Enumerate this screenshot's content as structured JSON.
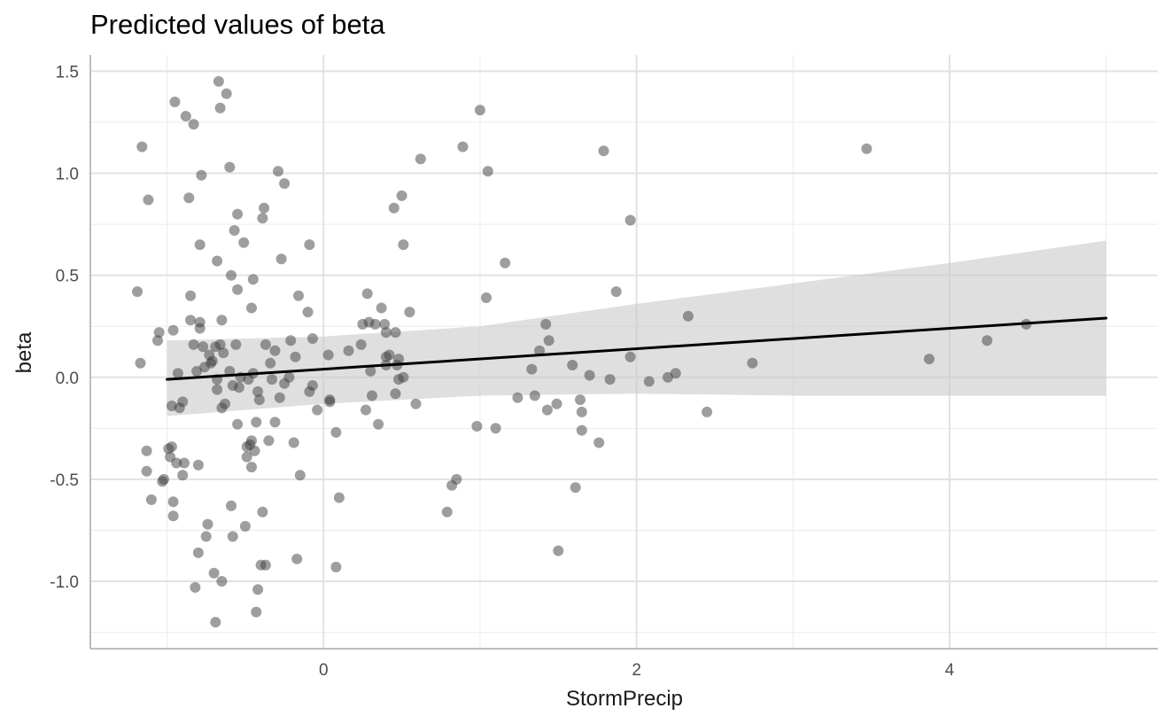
{
  "chart_data": {
    "type": "scatter",
    "title": "Predicted values of beta",
    "xlabel": "StormPrecip",
    "ylabel": "beta",
    "xlim": [
      -1.49,
      5.33
    ],
    "ylim": [
      -1.33,
      1.58
    ],
    "x_ticks": [
      0,
      2,
      4
    ],
    "x_tick_labels": [
      "0",
      "2",
      "4"
    ],
    "x_minor_ticks": [
      -1,
      1,
      3,
      5
    ],
    "y_ticks": [
      -1.0,
      -0.5,
      0.0,
      0.5,
      1.0,
      1.5
    ],
    "y_tick_labels": [
      "-1.0",
      "-0.5",
      "0.0",
      "0.5",
      "1.0",
      "1.5"
    ],
    "y_minor_ticks": [
      -1.25,
      -0.75,
      -0.25,
      0.25,
      0.75,
      1.25
    ],
    "grid": true,
    "colors": {
      "points": "#3d3d3d",
      "line": "#000000",
      "ribbon": "#c9c9c9",
      "grid": "#ebebeb",
      "axis": "#bdbdbd"
    },
    "fit_line": {
      "x": [
        -1.0,
        5.0
      ],
      "y": [
        -0.01,
        0.29
      ]
    },
    "ci_band": {
      "x": [
        -1.0,
        0.0,
        1.0,
        2.0,
        3.0,
        4.0,
        5.0
      ],
      "upper": [
        0.18,
        0.2,
        0.25,
        0.36,
        0.46,
        0.56,
        0.67
      ],
      "lower": [
        -0.19,
        -0.13,
        -0.09,
        -0.08,
        -0.09,
        -0.09,
        -0.09
      ]
    },
    "points": [
      {
        "x": -1.19,
        "y": 0.42
      },
      {
        "x": -1.16,
        "y": 1.13
      },
      {
        "x": -1.17,
        "y": 0.07
      },
      {
        "x": -1.12,
        "y": 0.87
      },
      {
        "x": -1.13,
        "y": -0.36
      },
      {
        "x": -1.13,
        "y": -0.46
      },
      {
        "x": -1.1,
        "y": -0.6
      },
      {
        "x": -1.06,
        "y": 0.18
      },
      {
        "x": -1.05,
        "y": 0.22
      },
      {
        "x": -1.03,
        "y": -0.51
      },
      {
        "x": -1.02,
        "y": -0.5
      },
      {
        "x": -0.99,
        "y": -0.35
      },
      {
        "x": -0.98,
        "y": -0.39
      },
      {
        "x": -0.97,
        "y": -0.14
      },
      {
        "x": -0.97,
        "y": -0.34
      },
      {
        "x": -0.96,
        "y": -0.61
      },
      {
        "x": -0.96,
        "y": -0.68
      },
      {
        "x": -0.96,
        "y": 0.23
      },
      {
        "x": -0.95,
        "y": 1.35
      },
      {
        "x": -0.94,
        "y": -0.42
      },
      {
        "x": -0.93,
        "y": 0.02
      },
      {
        "x": -0.92,
        "y": -0.15
      },
      {
        "x": -0.9,
        "y": -0.12
      },
      {
        "x": -0.9,
        "y": -0.48
      },
      {
        "x": -0.89,
        "y": -0.42
      },
      {
        "x": -0.88,
        "y": 1.28
      },
      {
        "x": -0.86,
        "y": 0.88
      },
      {
        "x": -0.85,
        "y": 0.4
      },
      {
        "x": -0.85,
        "y": 0.28
      },
      {
        "x": -0.83,
        "y": 1.24
      },
      {
        "x": -0.83,
        "y": 0.16
      },
      {
        "x": -0.82,
        "y": -1.03
      },
      {
        "x": -0.81,
        "y": 0.03
      },
      {
        "x": -0.8,
        "y": -0.43
      },
      {
        "x": -0.8,
        "y": -0.86
      },
      {
        "x": -0.79,
        "y": 0.27
      },
      {
        "x": -0.79,
        "y": 0.65
      },
      {
        "x": -0.79,
        "y": 0.24
      },
      {
        "x": -0.78,
        "y": 0.99
      },
      {
        "x": -0.77,
        "y": 0.15
      },
      {
        "x": -0.76,
        "y": 0.05
      },
      {
        "x": -0.75,
        "y": -0.78
      },
      {
        "x": -0.74,
        "y": -0.72
      },
      {
        "x": -0.73,
        "y": 0.11
      },
      {
        "x": -0.72,
        "y": 0.07
      },
      {
        "x": -0.71,
        "y": 0.08
      },
      {
        "x": -0.7,
        "y": -0.96
      },
      {
        "x": -0.69,
        "y": -1.2
      },
      {
        "x": -0.69,
        "y": 0.15
      },
      {
        "x": -0.68,
        "y": 0.57
      },
      {
        "x": -0.68,
        "y": -0.01
      },
      {
        "x": -0.68,
        "y": -0.06
      },
      {
        "x": -0.67,
        "y": 1.45
      },
      {
        "x": -0.66,
        "y": 0.16
      },
      {
        "x": -0.66,
        "y": 1.32
      },
      {
        "x": -0.65,
        "y": -1.0
      },
      {
        "x": -0.65,
        "y": 0.28
      },
      {
        "x": -0.65,
        "y": -0.15
      },
      {
        "x": -0.64,
        "y": 0.12
      },
      {
        "x": -0.63,
        "y": -0.13
      },
      {
        "x": -0.62,
        "y": 1.39
      },
      {
        "x": -0.6,
        "y": 1.03
      },
      {
        "x": -0.6,
        "y": 0.03
      },
      {
        "x": -0.59,
        "y": 0.5
      },
      {
        "x": -0.59,
        "y": -0.63
      },
      {
        "x": -0.58,
        "y": -0.78
      },
      {
        "x": -0.58,
        "y": -0.04
      },
      {
        "x": -0.57,
        "y": 0.72
      },
      {
        "x": -0.56,
        "y": 0.16
      },
      {
        "x": -0.55,
        "y": 0.43
      },
      {
        "x": -0.55,
        "y": 0.8
      },
      {
        "x": -0.55,
        "y": -0.23
      },
      {
        "x": -0.54,
        "y": -0.05
      },
      {
        "x": -0.53,
        "y": 0.0
      },
      {
        "x": -0.51,
        "y": 0.66
      },
      {
        "x": -0.5,
        "y": -0.73
      },
      {
        "x": -0.49,
        "y": -0.34
      },
      {
        "x": -0.49,
        "y": -0.39
      },
      {
        "x": -0.48,
        "y": -0.01
      },
      {
        "x": -0.47,
        "y": -0.33
      },
      {
        "x": -0.46,
        "y": 0.34
      },
      {
        "x": -0.46,
        "y": -0.31
      },
      {
        "x": -0.46,
        "y": -0.44
      },
      {
        "x": -0.45,
        "y": 0.48
      },
      {
        "x": -0.45,
        "y": 0.02
      },
      {
        "x": -0.44,
        "y": -0.36
      },
      {
        "x": -0.43,
        "y": -0.22
      },
      {
        "x": -0.43,
        "y": -1.15
      },
      {
        "x": -0.42,
        "y": -1.04
      },
      {
        "x": -0.42,
        "y": -0.07
      },
      {
        "x": -0.41,
        "y": -0.11
      },
      {
        "x": -0.4,
        "y": -0.92
      },
      {
        "x": -0.39,
        "y": -0.66
      },
      {
        "x": -0.39,
        "y": 0.78
      },
      {
        "x": -0.38,
        "y": 0.83
      },
      {
        "x": -0.37,
        "y": 0.16
      },
      {
        "x": -0.37,
        "y": -0.92
      },
      {
        "x": -0.35,
        "y": -0.31
      },
      {
        "x": -0.34,
        "y": 0.07
      },
      {
        "x": -0.33,
        "y": -0.01
      },
      {
        "x": -0.31,
        "y": 0.13
      },
      {
        "x": -0.31,
        "y": -0.22
      },
      {
        "x": -0.29,
        "y": 1.01
      },
      {
        "x": -0.28,
        "y": -0.1
      },
      {
        "x": -0.27,
        "y": 0.58
      },
      {
        "x": -0.25,
        "y": -0.03
      },
      {
        "x": -0.25,
        "y": 0.95
      },
      {
        "x": -0.22,
        "y": 0.0
      },
      {
        "x": -0.21,
        "y": 0.18
      },
      {
        "x": -0.19,
        "y": -0.32
      },
      {
        "x": -0.18,
        "y": 0.1
      },
      {
        "x": -0.17,
        "y": -0.89
      },
      {
        "x": -0.16,
        "y": 0.4
      },
      {
        "x": -0.15,
        "y": -0.48
      },
      {
        "x": -0.1,
        "y": 0.32
      },
      {
        "x": -0.09,
        "y": 0.65
      },
      {
        "x": -0.09,
        "y": -0.07
      },
      {
        "x": -0.07,
        "y": 0.19
      },
      {
        "x": -0.07,
        "y": -0.04
      },
      {
        "x": -0.04,
        "y": -0.16
      },
      {
        "x": 0.03,
        "y": 0.11
      },
      {
        "x": 0.04,
        "y": -0.11
      },
      {
        "x": 0.04,
        "y": -0.12
      },
      {
        "x": 0.08,
        "y": -0.93
      },
      {
        "x": 0.08,
        "y": -0.27
      },
      {
        "x": 0.1,
        "y": -0.59
      },
      {
        "x": 0.16,
        "y": 0.13
      },
      {
        "x": 0.24,
        "y": 0.16
      },
      {
        "x": 0.25,
        "y": 0.26
      },
      {
        "x": 0.27,
        "y": -0.16
      },
      {
        "x": 0.28,
        "y": 0.41
      },
      {
        "x": 0.29,
        "y": 0.27
      },
      {
        "x": 0.3,
        "y": 0.03
      },
      {
        "x": 0.31,
        "y": -0.09
      },
      {
        "x": 0.33,
        "y": 0.26
      },
      {
        "x": 0.35,
        "y": -0.23
      },
      {
        "x": 0.37,
        "y": 0.34
      },
      {
        "x": 0.39,
        "y": 0.26
      },
      {
        "x": 0.4,
        "y": 0.22
      },
      {
        "x": 0.4,
        "y": 0.1
      },
      {
        "x": 0.4,
        "y": 0.06
      },
      {
        "x": 0.42,
        "y": 0.11
      },
      {
        "x": 0.45,
        "y": 0.83
      },
      {
        "x": 0.46,
        "y": 0.22
      },
      {
        "x": 0.46,
        "y": -0.08
      },
      {
        "x": 0.47,
        "y": 0.06
      },
      {
        "x": 0.48,
        "y": 0.09
      },
      {
        "x": 0.48,
        "y": -0.01
      },
      {
        "x": 0.5,
        "y": 0.89
      },
      {
        "x": 0.51,
        "y": 0.65
      },
      {
        "x": 0.51,
        "y": 0.0
      },
      {
        "x": 0.55,
        "y": 0.32
      },
      {
        "x": 0.59,
        "y": -0.13
      },
      {
        "x": 0.62,
        "y": 1.07
      },
      {
        "x": 0.79,
        "y": -0.66
      },
      {
        "x": 0.82,
        "y": -0.53
      },
      {
        "x": 0.85,
        "y": -0.5
      },
      {
        "x": 0.89,
        "y": 1.13
      },
      {
        "x": 0.98,
        "y": -0.24
      },
      {
        "x": 1.0,
        "y": 1.31
      },
      {
        "x": 1.04,
        "y": 0.39
      },
      {
        "x": 1.05,
        "y": 1.01
      },
      {
        "x": 1.1,
        "y": -0.25
      },
      {
        "x": 1.16,
        "y": 0.56
      },
      {
        "x": 1.24,
        "y": -0.1
      },
      {
        "x": 1.33,
        "y": 0.04
      },
      {
        "x": 1.35,
        "y": -0.09
      },
      {
        "x": 1.38,
        "y": 0.13
      },
      {
        "x": 1.42,
        "y": 0.26
      },
      {
        "x": 1.43,
        "y": -0.16
      },
      {
        "x": 1.44,
        "y": 0.18
      },
      {
        "x": 1.49,
        "y": -0.13
      },
      {
        "x": 1.5,
        "y": -0.85
      },
      {
        "x": 1.59,
        "y": 0.06
      },
      {
        "x": 1.61,
        "y": -0.54
      },
      {
        "x": 1.64,
        "y": -0.11
      },
      {
        "x": 1.65,
        "y": -0.17
      },
      {
        "x": 1.65,
        "y": -0.26
      },
      {
        "x": 1.7,
        "y": 0.01
      },
      {
        "x": 1.76,
        "y": -0.32
      },
      {
        "x": 1.79,
        "y": 1.11
      },
      {
        "x": 1.83,
        "y": -0.01
      },
      {
        "x": 1.87,
        "y": 0.42
      },
      {
        "x": 1.96,
        "y": 0.1
      },
      {
        "x": 1.96,
        "y": 0.77
      },
      {
        "x": 2.08,
        "y": -0.02
      },
      {
        "x": 2.2,
        "y": 0.0
      },
      {
        "x": 2.25,
        "y": 0.02
      },
      {
        "x": 2.33,
        "y": 0.3
      },
      {
        "x": 2.45,
        "y": -0.17
      },
      {
        "x": 2.74,
        "y": 0.07
      },
      {
        "x": 3.47,
        "y": 1.12
      },
      {
        "x": 3.87,
        "y": 0.09
      },
      {
        "x": 4.24,
        "y": 0.18
      },
      {
        "x": 4.49,
        "y": 0.26
      }
    ]
  }
}
